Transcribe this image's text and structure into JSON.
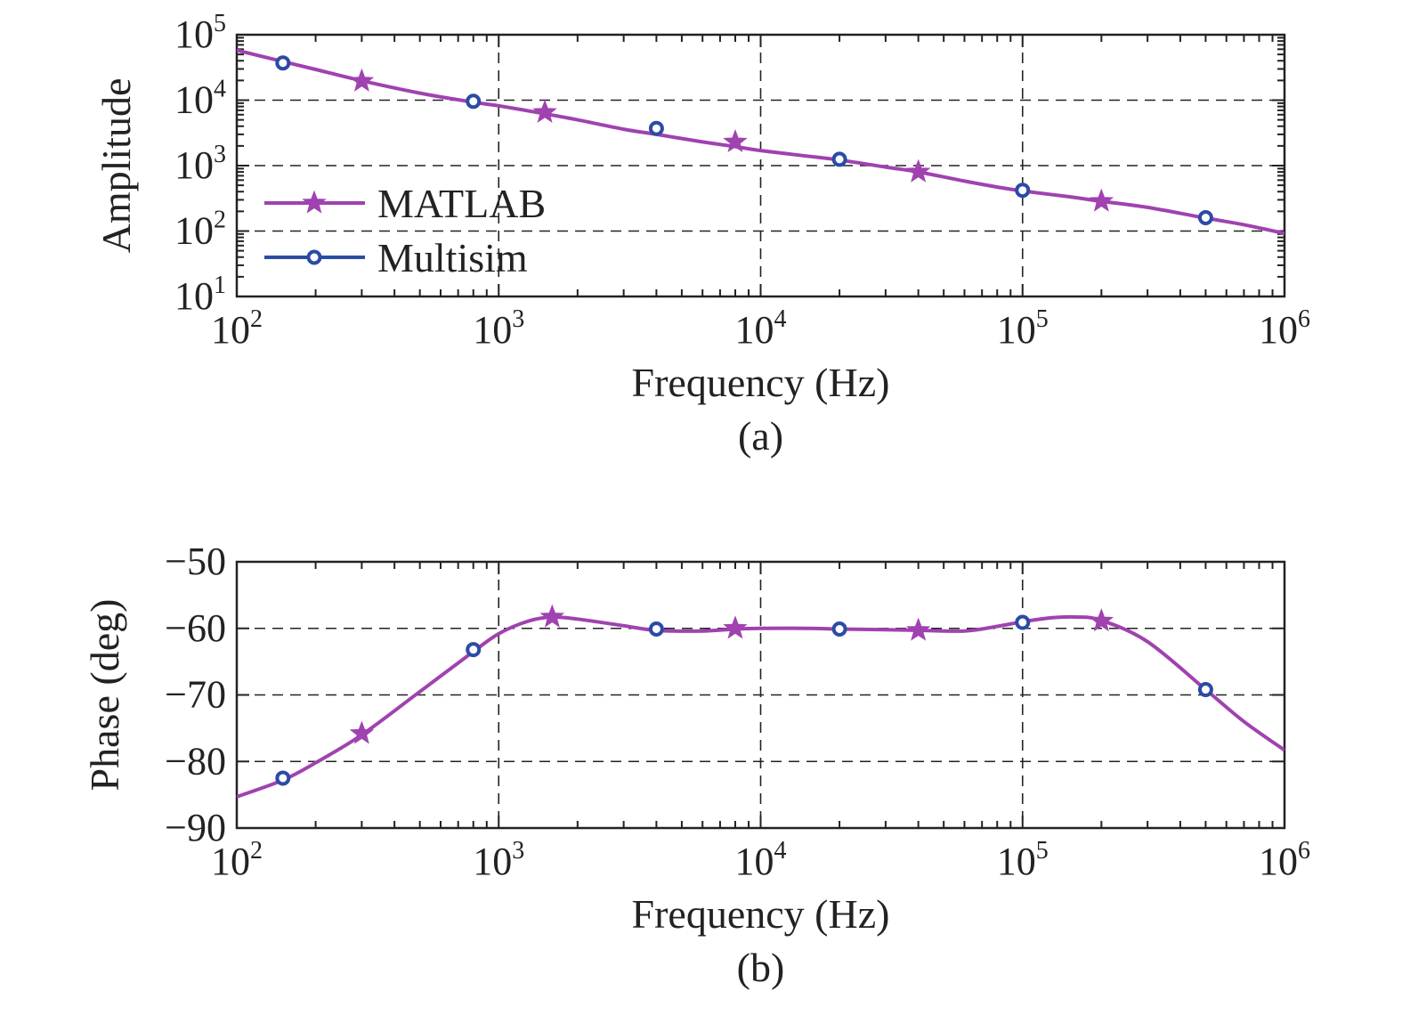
{
  "colors": {
    "matlab": "#a042b0",
    "multisim": "#2b4ba4",
    "axis": "#222222",
    "background": "#ffffff"
  },
  "legend": {
    "entries": [
      {
        "label": "MATLAB",
        "marker": "star",
        "series": "MATLAB"
      },
      {
        "label": "Multisim",
        "marker": "circle",
        "series": "Multisim"
      }
    ],
    "placement": "lower-left"
  },
  "chart_data": [
    {
      "type": "line",
      "panel": "(a)",
      "caption": "(a)",
      "xlabel": "Frequency (Hz)",
      "ylabel": "Amplitude",
      "xscale": "log",
      "yscale": "log",
      "xlim": [
        100,
        1000000
      ],
      "ylim": [
        10,
        100000
      ],
      "xticks": [
        {
          "base": "10",
          "exp": "2"
        },
        {
          "base": "10",
          "exp": "3"
        },
        {
          "base": "10",
          "exp": "4"
        },
        {
          "base": "10",
          "exp": "5"
        },
        {
          "base": "10",
          "exp": "6"
        }
      ],
      "yticks": [
        {
          "base": "10",
          "exp": "1"
        },
        {
          "base": "10",
          "exp": "2"
        },
        {
          "base": "10",
          "exp": "3"
        },
        {
          "base": "10",
          "exp": "4"
        },
        {
          "base": "10",
          "exp": "5"
        }
      ],
      "grid": true,
      "legend": "lower-left",
      "series": [
        {
          "name": "MATLAB",
          "marker": "star",
          "curve": {
            "x": [
              100,
              150,
              200,
              300,
              500,
              800,
              1000,
              1500,
              2000,
              3000,
              4000,
              6000,
              8000,
              10000,
              15000,
              20000,
              30000,
              40000,
              60000,
              80000,
              100000,
              150000,
              200000,
              300000,
              500000,
              700000,
              1000000
            ],
            "y": [
              58000,
              39000,
              29500,
              19800,
              12800,
              9300,
              8200,
              6200,
              5000,
              3600,
              3000,
              2300,
              1950,
              1700,
              1400,
              1220,
              950,
              800,
              580,
              470,
              410,
              335,
              285,
              230,
              158,
              125,
              92
            ]
          },
          "markers": {
            "x": [
              300,
              1500,
              8000,
              40000,
              200000
            ],
            "y": [
              19500,
              6500,
              2300,
              800,
              285
            ]
          }
        },
        {
          "name": "Multisim",
          "marker": "circle",
          "markers": {
            "x": [
              150,
              800,
              4000,
              20000,
              100000,
              500000
            ],
            "y": [
              37000,
              9600,
              3700,
              1250,
              420,
              160
            ]
          }
        }
      ]
    },
    {
      "type": "line",
      "panel": "(b)",
      "caption": "(b)",
      "xlabel": "Frequency (Hz)",
      "ylabel": "Phase (deg)",
      "xscale": "log",
      "yscale": "linear",
      "xlim": [
        100,
        1000000
      ],
      "ylim": [
        -90,
        -50
      ],
      "xticks": [
        {
          "base": "10",
          "exp": "2"
        },
        {
          "base": "10",
          "exp": "3"
        },
        {
          "base": "10",
          "exp": "4"
        },
        {
          "base": "10",
          "exp": "5"
        },
        {
          "base": "10",
          "exp": "6"
        }
      ],
      "yticks": [
        "−50",
        "−60",
        "−70",
        "−80",
        "−90"
      ],
      "ytick_values": [
        -50,
        -60,
        -70,
        -80,
        -90
      ],
      "grid": true,
      "series": [
        {
          "name": "MATLAB",
          "marker": "star",
          "curve": {
            "x": [
              100,
              150,
              200,
              300,
              500,
              800,
              1000,
              1300,
              1600,
              2000,
              3000,
              4000,
              6000,
              8000,
              10000,
              15000,
              20000,
              30000,
              40000,
              60000,
              80000,
              100000,
              130000,
              160000,
              200000,
              300000,
              500000,
              700000,
              1000000
            ],
            "y": [
              -85.3,
              -82.8,
              -80.2,
              -76.0,
              -69.5,
              -63.5,
              -60.8,
              -58.9,
              -58.3,
              -58.6,
              -59.6,
              -60.3,
              -60.4,
              -60.1,
              -60.0,
              -60.0,
              -60.1,
              -60.2,
              -60.3,
              -60.4,
              -59.7,
              -59.0,
              -58.4,
              -58.3,
              -58.8,
              -62.0,
              -69.2,
              -74.0,
              -78.3
            ]
          },
          "markers": {
            "x": [
              300,
              1600,
              8000,
              40000,
              200000
            ],
            "y": [
              -75.8,
              -58.3,
              -60.0,
              -60.3,
              -58.9
            ]
          }
        },
        {
          "name": "Multisim",
          "marker": "circle",
          "markers": {
            "x": [
              150,
              800,
              4000,
              20000,
              100000,
              500000
            ],
            "y": [
              -82.5,
              -63.2,
              -60.1,
              -60.1,
              -59.1,
              -69.2
            ]
          }
        }
      ]
    }
  ]
}
